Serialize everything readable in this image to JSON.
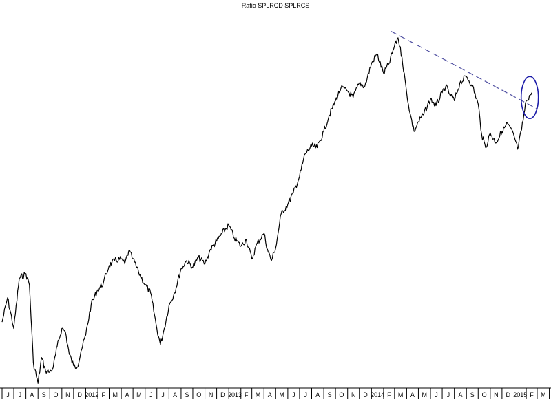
{
  "chart_data": {
    "type": "line",
    "title": "Ratio SPLRCD SPLRCS",
    "xlabel": "",
    "ylabel": "",
    "grid": false,
    "x_tick_labels": [
      "J",
      "J",
      "A",
      "S",
      "O",
      "N",
      "D",
      "2012",
      "F",
      "M",
      "A",
      "M",
      "J",
      "J",
      "A",
      "S",
      "O",
      "N",
      "D",
      "2013",
      "F",
      "M",
      "A",
      "M",
      "J",
      "J",
      "A",
      "S",
      "O",
      "N",
      "D",
      "2014",
      "F",
      "M",
      "A",
      "M",
      "J",
      "J",
      "A",
      "S",
      "O",
      "N",
      "D",
      "2015",
      "F",
      "M"
    ],
    "x_start": "2011-06",
    "x_end": "2015-03",
    "series": [
      {
        "color": "#000000",
        "points": [
          [
            "2011-06-01",
            0.4
          ],
          [
            "2011-06-15",
            0.55
          ],
          [
            "2011-07-01",
            0.36
          ],
          [
            "2011-07-15",
            0.67
          ],
          [
            "2011-08-01",
            0.7
          ],
          [
            "2011-08-10",
            0.63
          ],
          [
            "2011-08-20",
            0.15
          ],
          [
            "2011-09-01",
            0.02
          ],
          [
            "2011-09-10",
            0.18
          ],
          [
            "2011-09-20",
            0.1
          ],
          [
            "2011-10-01",
            0.09
          ],
          [
            "2011-10-10",
            0.12
          ],
          [
            "2011-10-20",
            0.25
          ],
          [
            "2011-11-01",
            0.36
          ],
          [
            "2011-11-10",
            0.34
          ],
          [
            "2011-11-20",
            0.2
          ],
          [
            "2011-12-01",
            0.13
          ],
          [
            "2011-12-10",
            0.12
          ],
          [
            "2011-12-20",
            0.22
          ],
          [
            "2012-01-01",
            0.32
          ],
          [
            "2012-01-15",
            0.51
          ],
          [
            "2012-02-01",
            0.6
          ],
          [
            "2012-02-15",
            0.64
          ],
          [
            "2012-03-01",
            0.75
          ],
          [
            "2012-03-15",
            0.78
          ],
          [
            "2012-04-01",
            0.79
          ],
          [
            "2012-04-10",
            0.76
          ],
          [
            "2012-04-20",
            0.84
          ],
          [
            "2012-05-01",
            0.79
          ],
          [
            "2012-05-15",
            0.71
          ],
          [
            "2012-06-01",
            0.63
          ],
          [
            "2012-06-15",
            0.58
          ],
          [
            "2012-07-01",
            0.36
          ],
          [
            "2012-07-10",
            0.26
          ],
          [
            "2012-07-20",
            0.36
          ],
          [
            "2012-08-01",
            0.5
          ],
          [
            "2012-08-15",
            0.58
          ],
          [
            "2012-09-01",
            0.73
          ],
          [
            "2012-09-15",
            0.78
          ],
          [
            "2012-10-01",
            0.74
          ],
          [
            "2012-10-15",
            0.8
          ],
          [
            "2012-11-01",
            0.76
          ],
          [
            "2012-11-15",
            0.85
          ],
          [
            "2012-12-01",
            0.9
          ],
          [
            "2012-12-15",
            0.95
          ],
          [
            "2013-01-01",
            1.0
          ],
          [
            "2013-01-15",
            0.92
          ],
          [
            "2013-02-01",
            0.87
          ],
          [
            "2013-02-15",
            0.91
          ],
          [
            "2013-03-01",
            0.79
          ],
          [
            "2013-03-15",
            0.89
          ],
          [
            "2013-04-01",
            0.95
          ],
          [
            "2013-04-10",
            0.85
          ],
          [
            "2013-04-20",
            0.78
          ],
          [
            "2013-05-01",
            0.86
          ],
          [
            "2013-05-15",
            1.07
          ],
          [
            "2013-06-01",
            1.13
          ],
          [
            "2013-06-15",
            1.2
          ],
          [
            "2013-07-01",
            1.3
          ],
          [
            "2013-07-15",
            1.44
          ],
          [
            "2013-08-01",
            1.49
          ],
          [
            "2013-08-15",
            1.48
          ],
          [
            "2013-09-01",
            1.58
          ],
          [
            "2013-09-15",
            1.68
          ],
          [
            "2013-10-01",
            1.77
          ],
          [
            "2013-10-15",
            1.85
          ],
          [
            "2013-11-01",
            1.83
          ],
          [
            "2013-11-15",
            1.79
          ],
          [
            "2013-12-01",
            1.88
          ],
          [
            "2013-12-15",
            1.86
          ],
          [
            "2014-01-01",
            2.0
          ],
          [
            "2014-01-15",
            2.06
          ],
          [
            "2014-02-01",
            1.94
          ],
          [
            "2014-02-15",
            2.0
          ],
          [
            "2014-03-01",
            2.11
          ],
          [
            "2014-03-10",
            2.16
          ],
          [
            "2014-03-20",
            2.04
          ],
          [
            "2014-04-01",
            1.82
          ],
          [
            "2014-04-10",
            1.69
          ],
          [
            "2014-04-20",
            1.58
          ],
          [
            "2014-05-01",
            1.64
          ],
          [
            "2014-05-15",
            1.69
          ],
          [
            "2014-06-01",
            1.78
          ],
          [
            "2014-06-15",
            1.74
          ],
          [
            "2014-07-01",
            1.82
          ],
          [
            "2014-07-10",
            1.86
          ],
          [
            "2014-07-20",
            1.81
          ],
          [
            "2014-08-01",
            1.77
          ],
          [
            "2014-08-15",
            1.88
          ],
          [
            "2014-09-01",
            1.92
          ],
          [
            "2014-09-15",
            1.87
          ],
          [
            "2014-10-01",
            1.75
          ],
          [
            "2014-10-10",
            1.56
          ],
          [
            "2014-10-20",
            1.48
          ],
          [
            "2014-11-01",
            1.57
          ],
          [
            "2014-11-15",
            1.51
          ],
          [
            "2014-12-01",
            1.58
          ],
          [
            "2014-12-15",
            1.63
          ],
          [
            "2015-01-01",
            1.55
          ],
          [
            "2015-01-10",
            1.47
          ],
          [
            "2015-01-20",
            1.59
          ],
          [
            "2015-02-01",
            1.77
          ],
          [
            "2015-02-15",
            1.82
          ]
        ]
      }
    ],
    "annotations": [
      {
        "type": "trendline",
        "style": "dashed",
        "color": "#4d4da0",
        "from": [
          "2014-02-20",
          2.2
        ],
        "to": [
          "2015-03-01",
          1.72
        ]
      },
      {
        "type": "ellipse",
        "color": "#1a1aa8",
        "center": [
          "2015-02-10",
          1.79
        ],
        "rx_days": 22,
        "ry_value": 0.13
      }
    ]
  }
}
